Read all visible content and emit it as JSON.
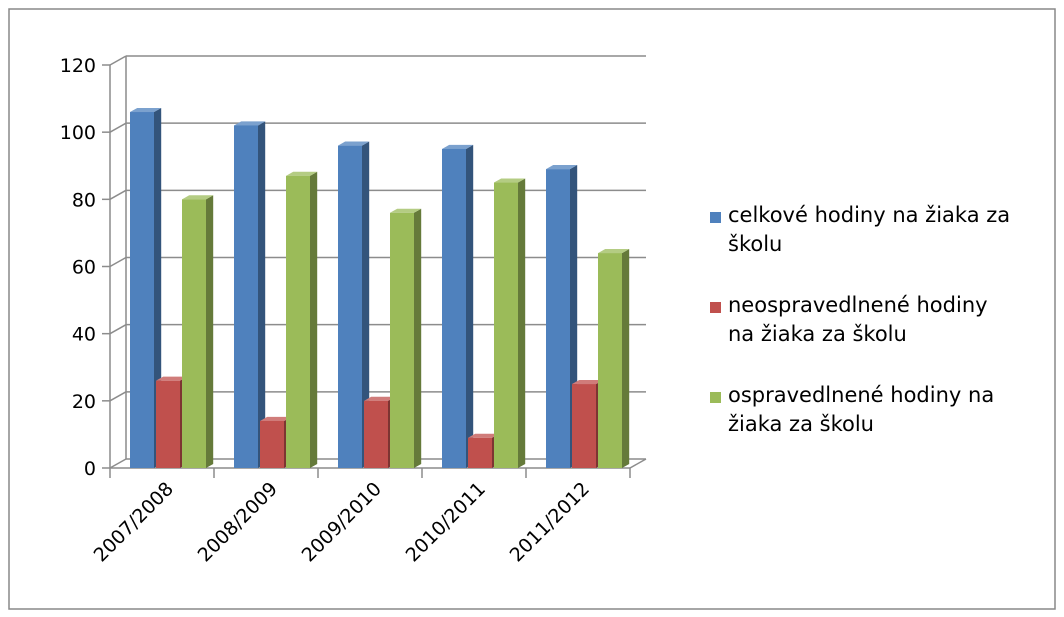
{
  "chart_data": {
    "type": "bar",
    "title": "",
    "xlabel": "",
    "ylabel": "",
    "ylim": [
      0,
      120
    ],
    "yticks": [
      0,
      20,
      40,
      60,
      80,
      100,
      120
    ],
    "categories": [
      "2007/2008",
      "2008/2009",
      "2009/2010",
      "2010/2011",
      "2011/2012"
    ],
    "series": [
      {
        "name": "celkové hodiny na žiaka za školu",
        "name_lines": [
          "celkové hodiny na žiaka za",
          "školu"
        ],
        "color": "#4F81BD",
        "values": [
          106,
          102,
          96,
          95,
          89
        ]
      },
      {
        "name": "neospravedlnené hodiny na žiaka za školu",
        "name_lines": [
          "neospravedlnené hodiny",
          "na žiaka za školu"
        ],
        "color": "#C0504D",
        "values": [
          26,
          14,
          20,
          9,
          25
        ]
      },
      {
        "name": "ospravedlnené hodiny na žiaka za školu",
        "name_lines": [
          "ospravedlnené hodiny na",
          "žiaka za školu"
        ],
        "color": "#9BBB59",
        "values": [
          80,
          87,
          76,
          85,
          64
        ]
      }
    ],
    "legend_position": "right",
    "grid": true,
    "style": "3d-column"
  }
}
